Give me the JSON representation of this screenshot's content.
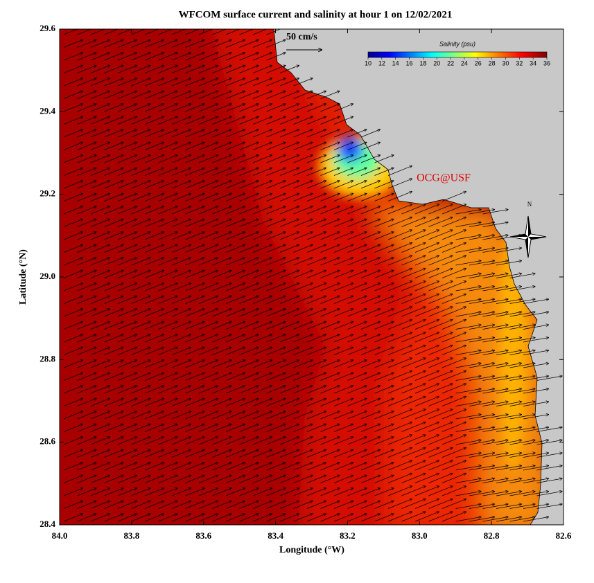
{
  "chart_data": {
    "type": "map",
    "title": "WFCOM surface current and salinity at hour 1 on 12/02/2021",
    "x_label": "Longitude (°W)",
    "y_label": "Latitude (°N)",
    "xlim": [
      84.0,
      82.6
    ],
    "xticks": [
      {
        "value": 84.0,
        "label": "84.0"
      },
      83.8,
      83.6,
      83.4,
      83.2,
      {
        "value": 83.0,
        "label": "83.0"
      },
      82.8,
      82.6
    ],
    "ylim": [
      28.4,
      29.6
    ],
    "yticks": [
      28.4,
      28.6,
      28.8,
      {
        "value": 29.0,
        "label": "29.0"
      },
      29.2,
      29.4,
      29.6
    ],
    "colorbar": {
      "title": "Salinity (psu)",
      "clim": [
        10,
        36
      ],
      "ticks": [
        10,
        12,
        14,
        16,
        18,
        20,
        22,
        24,
        26,
        28,
        30,
        32,
        34,
        36
      ]
    },
    "scale_label": "50 cm/s",
    "annotation": "OCG@USF",
    "compass": "N"
  }
}
